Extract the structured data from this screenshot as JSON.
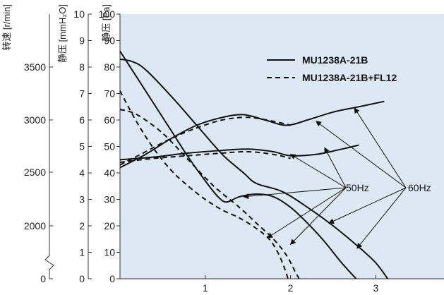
{
  "chart_data": {
    "type": "line",
    "plot_background": "#dce9f5",
    "xlim": [
      0,
      3.8
    ],
    "ylim": [
      0,
      100
    ],
    "x_ticks": [
      "1",
      "2",
      "3"
    ],
    "x_tick_values": [
      1,
      2,
      3
    ],
    "axes": {
      "speed": {
        "title": "转速 [r/min]",
        "ticks": [
          "0",
          "2000",
          "2500",
          "3000",
          "3500"
        ]
      },
      "mmh2o": {
        "title": "静压 [mmH₂O]",
        "ticks": [
          "0",
          "1",
          "2",
          "3",
          "4",
          "5",
          "6",
          "7",
          "8",
          "9",
          "10"
        ]
      },
      "pa": {
        "title": "静压 [Pa]",
        "ticks": [
          "0",
          "10",
          "20",
          "30",
          "40",
          "50",
          "60",
          "70",
          "80",
          "90",
          "100"
        ]
      }
    },
    "legend": [
      {
        "label": "MU1238A-21B",
        "style": "solid"
      },
      {
        "label": "MU1238A-21B+FL12",
        "style": "dashed"
      }
    ],
    "annotations": {
      "hz50": "50Hz",
      "hz60": "60Hz"
    },
    "series": [
      {
        "legend": 0,
        "group": "60Hz",
        "kind": "pressure",
        "points": [
          [
            0.0,
            83
          ],
          [
            0.15,
            82
          ],
          [
            0.3,
            79
          ],
          [
            0.6,
            69
          ],
          [
            0.9,
            58
          ],
          [
            1.2,
            47
          ],
          [
            1.45,
            40
          ],
          [
            1.6,
            36
          ],
          [
            1.9,
            33
          ],
          [
            2.2,
            27
          ],
          [
            2.5,
            20
          ],
          [
            2.8,
            12
          ],
          [
            3.0,
            6
          ],
          [
            3.14,
            0
          ]
        ]
      },
      {
        "legend": 1,
        "group": "60Hz",
        "kind": "pressure",
        "points": [
          [
            0.0,
            64
          ],
          [
            0.2,
            62
          ],
          [
            0.5,
            55
          ],
          [
            0.8,
            45
          ],
          [
            1.1,
            35
          ],
          [
            1.4,
            27
          ],
          [
            1.6,
            21
          ],
          [
            1.8,
            15
          ],
          [
            1.95,
            9
          ],
          [
            2.05,
            3
          ],
          [
            2.1,
            0
          ]
        ]
      },
      {
        "legend": 0,
        "group": "50Hz",
        "kind": "pressure",
        "points": [
          [
            0.0,
            86
          ],
          [
            0.2,
            76
          ],
          [
            0.4,
            66
          ],
          [
            0.6,
            56
          ],
          [
            0.8,
            46
          ],
          [
            1.0,
            37
          ],
          [
            1.15,
            31
          ],
          [
            1.25,
            29
          ],
          [
            1.4,
            31
          ],
          [
            1.6,
            32
          ],
          [
            1.8,
            31
          ],
          [
            2.0,
            27
          ],
          [
            2.2,
            21
          ],
          [
            2.4,
            14
          ],
          [
            2.6,
            6
          ],
          [
            2.77,
            0
          ]
        ]
      },
      {
        "legend": 1,
        "group": "50Hz",
        "kind": "pressure",
        "points": [
          [
            0.0,
            71
          ],
          [
            0.2,
            59
          ],
          [
            0.4,
            49
          ],
          [
            0.6,
            41
          ],
          [
            0.8,
            35
          ],
          [
            1.0,
            30
          ],
          [
            1.2,
            26
          ],
          [
            1.4,
            23
          ],
          [
            1.6,
            19
          ],
          [
            1.75,
            15
          ],
          [
            1.85,
            10
          ],
          [
            1.93,
            4
          ],
          [
            1.97,
            0
          ]
        ]
      },
      {
        "legend": 0,
        "group": "60Hz",
        "kind": "speed",
        "points": [
          [
            0.0,
            42
          ],
          [
            0.3,
            47
          ],
          [
            0.6,
            53
          ],
          [
            0.9,
            58
          ],
          [
            1.2,
            61
          ],
          [
            1.45,
            62
          ],
          [
            1.7,
            60
          ],
          [
            1.95,
            58
          ],
          [
            2.2,
            60
          ],
          [
            2.5,
            63
          ],
          [
            2.8,
            65
          ],
          [
            3.1,
            67
          ]
        ]
      },
      {
        "legend": 1,
        "group": "60Hz",
        "kind": "speed",
        "points": [
          [
            0.0,
            43
          ],
          [
            0.3,
            48
          ],
          [
            0.6,
            53
          ],
          [
            0.9,
            57
          ],
          [
            1.2,
            60
          ],
          [
            1.5,
            61
          ],
          [
            1.8,
            59.5
          ],
          [
            2.0,
            58
          ]
        ]
      },
      {
        "legend": 0,
        "group": "50Hz",
        "kind": "speed",
        "points": [
          [
            0.0,
            45
          ],
          [
            0.4,
            46
          ],
          [
            0.8,
            47.5
          ],
          [
            1.2,
            48.5
          ],
          [
            1.5,
            49
          ],
          [
            1.8,
            48
          ],
          [
            2.0,
            46.5
          ],
          [
            2.3,
            47
          ],
          [
            2.6,
            49
          ],
          [
            2.8,
            50.5
          ]
        ]
      },
      {
        "legend": 1,
        "group": "50Hz",
        "kind": "speed",
        "points": [
          [
            0.0,
            44
          ],
          [
            0.4,
            45.5
          ],
          [
            0.8,
            46.5
          ],
          [
            1.2,
            47.5
          ],
          [
            1.5,
            48
          ],
          [
            1.8,
            47
          ],
          [
            2.0,
            45.5
          ]
        ]
      }
    ]
  }
}
